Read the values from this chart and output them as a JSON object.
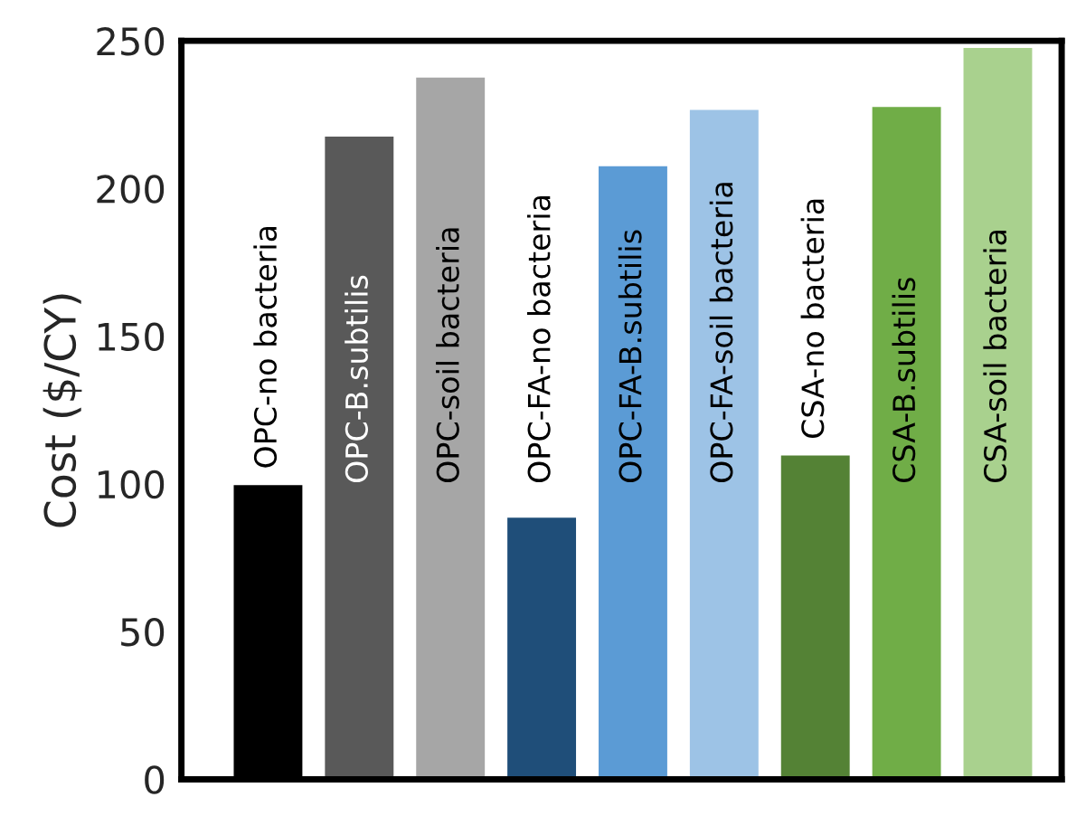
{
  "chart_data": {
    "type": "bar",
    "ylabel": "Cost ($/CY)",
    "categories": [
      "OPC-no bacteria",
      "OPC-B.subtilis",
      "OPC-soil bacteria",
      "OPC-FA-no bacteria",
      "OPC-FA-B.subtilis",
      "OPC-FA-soil bacteria",
      "CSA-no bacteria",
      "CSA-B.subtilis",
      "CSA-soil bacteria"
    ],
    "values": [
      100,
      218,
      238,
      89,
      208,
      227,
      110,
      228,
      248
    ],
    "colors": [
      "#000000",
      "#595959",
      "#a6a6a6",
      "#1f4e79",
      "#5b9bd5",
      "#9dc3e6",
      "#548235",
      "#70ad47",
      "#a9d18e"
    ],
    "ylim": [
      0,
      250
    ],
    "yticks": [
      0,
      50,
      100,
      150,
      200,
      250
    ],
    "grid": false
  }
}
